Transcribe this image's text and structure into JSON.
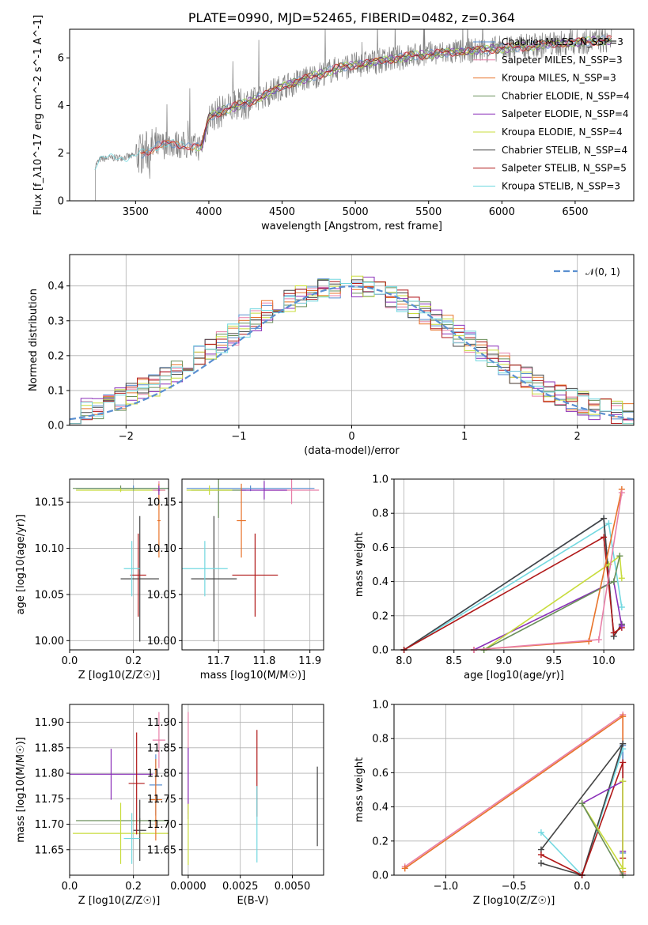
{
  "colors": {
    "c0": "#5a8fd0",
    "c1": "#e87fa8",
    "c2": "#e8732a",
    "c3": "#6a8f5a",
    "c4": "#8a2fb8",
    "c5": "#c8dc3c",
    "c6": "#444444",
    "c7": "#b01818",
    "c8": "#72d8e0",
    "spec": "#808080"
  },
  "chart_data": [
    {
      "type": "line",
      "title": "PLATE=0990, MJD=52465, FIBERID=0482, z=0.364",
      "xlabel": "wavelength [Angstrom, rest frame]",
      "ylabel": "Flux [f_λ10^-17 erg cm^-2 s^-1 A^-1]",
      "xlim": [
        3050,
        6900
      ],
      "ylim": [
        0,
        7.2
      ],
      "xticks": [
        "3500",
        "4000",
        "4500",
        "5000",
        "5500",
        "6000",
        "6500"
      ],
      "yticks": [
        "0",
        "2",
        "4",
        "6"
      ],
      "grid": false,
      "legend_position": "top-right",
      "series": [
        {
          "name": "Chabrier MILES, N_SSP=3",
          "color": "c0"
        },
        {
          "name": "Salpeter MILES, N_SSP=3",
          "color": "c1"
        },
        {
          "name": "Kroupa MILES, N_SSP=3",
          "color": "c2"
        },
        {
          "name": "Chabrier ELODIE, N_SSP=4",
          "color": "c3"
        },
        {
          "name": "Salpeter ELODIE, N_SSP=4",
          "color": "c4"
        },
        {
          "name": "Kroupa ELODIE, N_SSP=4",
          "color": "c5"
        },
        {
          "name": "Chabrier STELIB, N_SSP=4",
          "color": "c6"
        },
        {
          "name": "Salpeter STELIB, N_SSP=5",
          "color": "c7"
        },
        {
          "name": "Kroupa STELIB, N_SSP=3",
          "color": "c8"
        }
      ],
      "continuum": [
        [
          3220,
          1.45
        ],
        [
          3260,
          1.75
        ],
        [
          3350,
          1.8
        ],
        [
          3450,
          1.85
        ],
        [
          3500,
          1.9
        ],
        [
          3550,
          2.0
        ],
        [
          3650,
          2.3
        ],
        [
          3750,
          2.4
        ],
        [
          3850,
          2.3
        ],
        [
          3950,
          2.25
        ],
        [
          4000,
          3.5
        ],
        [
          4100,
          3.8
        ],
        [
          4200,
          4.0
        ],
        [
          4300,
          4.2
        ],
        [
          4400,
          4.5
        ],
        [
          4500,
          4.8
        ],
        [
          4600,
          5.0
        ],
        [
          4700,
          5.2
        ],
        [
          4800,
          5.4
        ],
        [
          4900,
          5.6
        ],
        [
          5000,
          5.7
        ],
        [
          5100,
          5.8
        ],
        [
          5200,
          5.9
        ],
        [
          5300,
          6.0
        ],
        [
          5400,
          6.1
        ],
        [
          5500,
          6.15
        ],
        [
          5600,
          6.2
        ],
        [
          5700,
          6.25
        ],
        [
          5800,
          6.3
        ],
        [
          5900,
          6.35
        ],
        [
          6000,
          6.4
        ],
        [
          6100,
          6.45
        ],
        [
          6200,
          6.5
        ],
        [
          6300,
          6.55
        ],
        [
          6400,
          6.6
        ],
        [
          6500,
          6.65
        ],
        [
          6600,
          6.7
        ],
        [
          6750,
          6.75
        ]
      ]
    },
    {
      "type": "bar",
      "xlabel": "(data-model)/error",
      "ylabel": "Normed distribution",
      "xlim": [
        -2.5,
        2.5
      ],
      "ylim": [
        0,
        0.49
      ],
      "xticks": [
        "−2",
        "−1",
        "0",
        "1",
        "2"
      ],
      "yticks": [
        "0.0",
        "0.1",
        "0.2",
        "0.3",
        "0.4"
      ],
      "grid": true,
      "legend_position": "top-right",
      "legend": "𝒩(0, 1)",
      "bin_width": 0.1,
      "bins_start": -2.5,
      "reference": "normal(0,1)"
    },
    {
      "type": "scatter",
      "xlabel": "Z [log10(Z/Z☉)]",
      "ylabel": "age [log10(age/yr)]",
      "xlim": [
        0,
        0.31
      ],
      "ylim": [
        9.99,
        10.175
      ],
      "xticks": [
        "0.0",
        "0.2"
      ],
      "yticks": [
        "10.00",
        "10.05",
        "10.10",
        "10.15"
      ],
      "grid": true,
      "points": [
        {
          "x": 0.2,
          "y": 10.165,
          "xe": 0.18,
          "ye": 0.003,
          "c": "c0"
        },
        {
          "x": 0.16,
          "y": 10.165,
          "xe": 0.15,
          "ye": 0.003,
          "c": "c3"
        },
        {
          "x": 0.16,
          "y": 10.163,
          "xe": 0.14,
          "ye": 0.002,
          "c": "c5"
        },
        {
          "x": 0.28,
          "y": 10.163,
          "xe": 0.02,
          "ye": 0.01,
          "c": "c1"
        },
        {
          "x": 0.28,
          "y": 10.13,
          "xe": 0.005,
          "ye": 0.04,
          "c": "c2"
        },
        {
          "x": 0.28,
          "y": 10.163,
          "xe": 0.003,
          "ye": 0.005,
          "c": "c4"
        },
        {
          "x": 0.22,
          "y": 10.067,
          "xe": 0.06,
          "ye": 0.068,
          "c": "c6"
        },
        {
          "x": 0.215,
          "y": 10.071,
          "xe": 0.025,
          "ye": 0.045,
          "c": "c7"
        },
        {
          "x": 0.195,
          "y": 10.078,
          "xe": 0.025,
          "ye": 0.03,
          "c": "c8"
        }
      ]
    },
    {
      "type": "scatter",
      "xlabel": "mass [log10(M/M☉)]",
      "xlim": [
        11.62,
        11.93
      ],
      "ylim": [
        9.99,
        10.175
      ],
      "xticks": [
        "11.7",
        "11.8",
        "11.9"
      ],
      "yticks": [
        "10.00",
        "10.05",
        "10.10",
        "10.15"
      ],
      "grid": true,
      "points": [
        {
          "x": 11.77,
          "y": 10.165,
          "xe": 0.14,
          "ye": 0.003,
          "c": "c0"
        },
        {
          "x": 11.7,
          "y": 10.163,
          "xe": 0.06,
          "ye": 0.03,
          "c": "c3"
        },
        {
          "x": 11.68,
          "y": 10.163,
          "xe": 0.05,
          "ye": 0.005,
          "c": "c5"
        },
        {
          "x": 11.86,
          "y": 10.163,
          "xe": 0.06,
          "ye": 0.015,
          "c": "c1"
        },
        {
          "x": 11.75,
          "y": 10.13,
          "xe": 0.01,
          "ye": 0.04,
          "c": "c2"
        },
        {
          "x": 11.8,
          "y": 10.163,
          "xe": 0.05,
          "ye": 0.01,
          "c": "c4"
        },
        {
          "x": 11.69,
          "y": 10.067,
          "xe": 0.05,
          "ye": 0.068,
          "c": "c6"
        },
        {
          "x": 11.78,
          "y": 10.071,
          "xe": 0.05,
          "ye": 0.045,
          "c": "c7"
        },
        {
          "x": 11.67,
          "y": 10.078,
          "xe": 0.05,
          "ye": 0.03,
          "c": "c8"
        }
      ]
    },
    {
      "type": "line",
      "xlabel": "age [log10(age/yr)]",
      "ylabel": "mass weight",
      "xlim": [
        7.9,
        10.3
      ],
      "ylim": [
        0,
        1.0
      ],
      "xticks": [
        "8.0",
        "8.5",
        "9.0",
        "9.5",
        "10.0"
      ],
      "yticks": [
        "0.0",
        "0.2",
        "0.4",
        "0.6",
        "0.8",
        "1.0"
      ],
      "grid": true,
      "series": [
        {
          "c": "c0",
          "pts": [
            [
              8.0,
              0.0
            ],
            [
              10.0,
              0.77
            ],
            [
              10.1,
              0.08
            ],
            [
              10.18,
              0.15
            ]
          ]
        },
        {
          "c": "c8",
          "pts": [
            [
              8.0,
              0.0
            ],
            [
              10.05,
              0.74
            ],
            [
              10.18,
              0.25
            ]
          ]
        },
        {
          "c": "c6",
          "pts": [
            [
              8.0,
              0.0
            ],
            [
              10.0,
              0.77
            ],
            [
              10.1,
              0.08
            ],
            [
              10.18,
              0.15
            ]
          ]
        },
        {
          "c": "c7",
          "pts": [
            [
              8.0,
              0.0
            ],
            [
              10.0,
              0.66
            ],
            [
              10.1,
              0.1
            ],
            [
              10.18,
              0.13
            ]
          ]
        },
        {
          "c": "c4",
          "pts": [
            [
              8.7,
              0.0
            ],
            [
              10.1,
              0.4
            ],
            [
              10.18,
              0.14
            ]
          ]
        },
        {
          "c": "c5",
          "pts": [
            [
              8.8,
              0.0
            ],
            [
              10.05,
              0.5
            ],
            [
              10.16,
              0.55
            ],
            [
              10.18,
              0.42
            ]
          ]
        },
        {
          "c": "c3",
          "pts": [
            [
              8.8,
              0.0
            ],
            [
              10.1,
              0.4
            ],
            [
              10.16,
              0.55
            ]
          ]
        },
        {
          "c": "c2",
          "pts": [
            [
              8.7,
              0.0
            ],
            [
              9.85,
              0.05
            ],
            [
              10.18,
              0.94
            ]
          ]
        },
        {
          "c": "c1",
          "pts": [
            [
              8.7,
              0.0
            ],
            [
              9.95,
              0.06
            ],
            [
              10.18,
              0.92
            ]
          ]
        }
      ]
    },
    {
      "type": "scatter",
      "xlabel": "Z [log10(Z/Z☉)]",
      "ylabel": "mass [log10(M/M☉)]",
      "xlim": [
        0,
        0.31
      ],
      "ylim": [
        11.6,
        11.935
      ],
      "xticks": [
        "0.0",
        "0.2"
      ],
      "yticks": [
        "11.65",
        "11.70",
        "11.75",
        "11.80",
        "11.85",
        "11.90"
      ],
      "grid": true,
      "points": [
        {
          "x": 0.22,
          "y": 11.707,
          "xe": 0.2,
          "ye": 0.005,
          "c": "c3"
        },
        {
          "x": 0.16,
          "y": 11.682,
          "xe": 0.15,
          "ye": 0.06,
          "c": "c5"
        },
        {
          "x": 0.13,
          "y": 11.798,
          "xe": 0.13,
          "ye": 0.05,
          "c": "c4"
        },
        {
          "x": 0.28,
          "y": 11.865,
          "xe": 0.02,
          "ye": 0.055,
          "c": "c1"
        },
        {
          "x": 0.27,
          "y": 11.777,
          "xe": 0.02,
          "ye": 0.06,
          "c": "c0"
        },
        {
          "x": 0.27,
          "y": 11.748,
          "xe": 0.02,
          "ye": 0.08,
          "c": "c2"
        },
        {
          "x": 0.22,
          "y": 11.688,
          "xe": 0.02,
          "ye": 0.06,
          "c": "c6"
        },
        {
          "x": 0.21,
          "y": 11.78,
          "xe": 0.025,
          "ye": 0.1,
          "c": "c7"
        },
        {
          "x": 0.195,
          "y": 11.672,
          "xe": 0.025,
          "ye": 0.05,
          "c": "c8"
        }
      ]
    },
    {
      "type": "scatter",
      "xlabel": "E(B-V)",
      "xlim": [
        -0.0003,
        0.0065
      ],
      "ylim": [
        11.6,
        11.935
      ],
      "xticks": [
        "0.0000",
        "0.0025",
        "0.0050"
      ],
      "yticks": [
        "11.65",
        "11.70",
        "11.75",
        "11.80",
        "11.85",
        "11.90"
      ],
      "grid": true,
      "points": [
        {
          "x": 0.0,
          "y": 11.82,
          "xe": 0,
          "ye": 0.1,
          "c": "c1"
        },
        {
          "x": 0.0,
          "y": 11.78,
          "xe": 0,
          "ye": 0.07,
          "c": "c4"
        },
        {
          "x": 0.0,
          "y": 11.68,
          "xe": 0,
          "ye": 0.06,
          "c": "c5"
        },
        {
          "x": 0.0033,
          "y": 11.8,
          "xe": 0,
          "ye": 0.085,
          "c": "c7"
        },
        {
          "x": 0.0033,
          "y": 11.7,
          "xe": 0,
          "ye": 0.075,
          "c": "c8"
        },
        {
          "x": 0.0062,
          "y": 11.735,
          "xe": 0,
          "ye": 0.078,
          "c": "c6"
        }
      ]
    },
    {
      "type": "line",
      "xlabel": "Z [log10(Z/Z☉)]",
      "ylabel": "mass weight",
      "xlim": [
        -1.38,
        0.38
      ],
      "ylim": [
        0,
        1.0
      ],
      "xticks": [
        "−1.0",
        "−0.5",
        "0.0"
      ],
      "yticks": [
        "0.0",
        "0.2",
        "0.4",
        "0.6",
        "0.8",
        "1.0"
      ],
      "grid": true,
      "series": [
        {
          "c": "c1",
          "pts": [
            [
              -1.3,
              0.05
            ],
            [
              0.3,
              0.94
            ],
            [
              0.3,
              0.01
            ]
          ]
        },
        {
          "c": "c2",
          "pts": [
            [
              -1.3,
              0.04
            ],
            [
              0.3,
              0.93
            ],
            [
              0.3,
              0.02
            ]
          ]
        },
        {
          "c": "c0",
          "pts": [
            [
              0.0,
              0.0
            ],
            [
              0.3,
              0.76
            ],
            [
              0.3,
              0.13
            ]
          ]
        },
        {
          "c": "c8",
          "pts": [
            [
              -0.3,
              0.25
            ],
            [
              0.0,
              0.0
            ],
            [
              0.3,
              0.74
            ]
          ]
        },
        {
          "c": "c6",
          "pts": [
            [
              -0.3,
              0.07
            ],
            [
              0.0,
              0.0
            ],
            [
              0.3,
              0.77
            ],
            [
              -0.3,
              0.15
            ]
          ]
        },
        {
          "c": "c7",
          "pts": [
            [
              -0.3,
              0.12
            ],
            [
              0.0,
              0.0
            ],
            [
              0.3,
              0.66
            ],
            [
              0.3,
              0.1
            ]
          ]
        },
        {
          "c": "c4",
          "pts": [
            [
              0.0,
              0.42
            ],
            [
              0.3,
              0.55
            ],
            [
              0.3,
              0.14
            ]
          ]
        },
        {
          "c": "c5",
          "pts": [
            [
              0.0,
              0.42
            ],
            [
              0.3,
              0.04
            ],
            [
              0.3,
              0.55
            ]
          ]
        },
        {
          "c": "c3",
          "pts": [
            [
              0.0,
              0.42
            ],
            [
              0.3,
              0.0
            ]
          ]
        }
      ]
    }
  ]
}
